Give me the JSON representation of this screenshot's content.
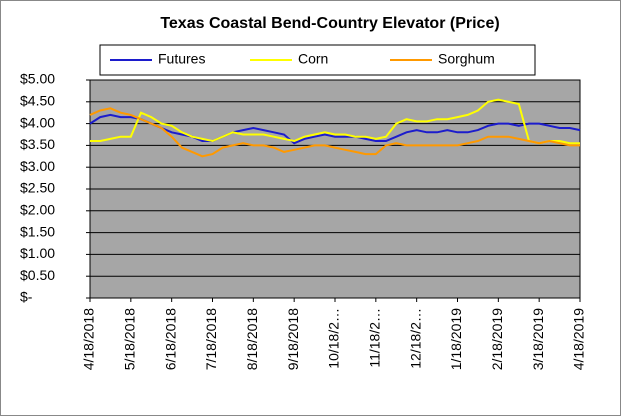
{
  "chart_data": {
    "type": "line",
    "title": "Texas Coastal Bend-Country Elevator (Price)",
    "categories": [
      "4/18/2018",
      null,
      null,
      null,
      "5/18/2018",
      null,
      null,
      null,
      "6/18/2018",
      null,
      null,
      null,
      "7/18/2018",
      null,
      null,
      null,
      "8/18/2018",
      null,
      null,
      null,
      "9/18/2018",
      null,
      null,
      null,
      "10/18/2…",
      null,
      null,
      null,
      "11/18/2…",
      null,
      null,
      null,
      "12/18/2…",
      null,
      null,
      null,
      "1/18/2019",
      null,
      null,
      null,
      "2/18/2019",
      null,
      null,
      null,
      "3/18/2019",
      null,
      null,
      null,
      "4/18/2019"
    ],
    "series": [
      {
        "name": "Futures",
        "color": "#1c1ccc",
        "values": [
          4.0,
          4.15,
          4.2,
          4.15,
          4.15,
          4.1,
          4.0,
          3.9,
          3.8,
          3.75,
          3.7,
          3.6,
          3.6,
          3.7,
          3.8,
          3.85,
          3.9,
          3.85,
          3.8,
          3.75,
          3.55,
          3.65,
          3.7,
          3.75,
          3.7,
          3.7,
          3.7,
          3.65,
          3.6,
          3.6,
          3.7,
          3.8,
          3.85,
          3.8,
          3.8,
          3.85,
          3.8,
          3.8,
          3.85,
          3.95,
          4.0,
          4.0,
          3.95,
          4.0,
          4.0,
          3.95,
          3.9,
          3.9,
          3.85
        ]
      },
      {
        "name": "Corn",
        "color": "#ffff00",
        "values": [
          3.6,
          3.6,
          3.65,
          3.7,
          3.7,
          4.25,
          4.15,
          4.0,
          3.95,
          3.8,
          3.7,
          3.65,
          3.6,
          3.7,
          3.8,
          3.75,
          3.75,
          3.75,
          3.7,
          3.65,
          3.6,
          3.7,
          3.75,
          3.8,
          3.75,
          3.75,
          3.7,
          3.7,
          3.65,
          3.7,
          4.0,
          4.1,
          4.05,
          4.05,
          4.1,
          4.1,
          4.15,
          4.2,
          4.3,
          4.5,
          4.55,
          4.5,
          4.45,
          3.6,
          3.55,
          3.6,
          3.6,
          3.55,
          3.55
        ]
      },
      {
        "name": "Sorghum",
        "color": "#ff9900",
        "values": [
          4.2,
          4.3,
          4.35,
          4.25,
          4.2,
          4.1,
          4.0,
          3.9,
          3.7,
          3.45,
          3.35,
          3.25,
          3.3,
          3.45,
          3.5,
          3.55,
          3.5,
          3.5,
          3.45,
          3.35,
          3.4,
          3.45,
          3.5,
          3.5,
          3.45,
          3.4,
          3.35,
          3.3,
          3.3,
          3.5,
          3.55,
          3.5,
          3.5,
          3.5,
          3.5,
          3.5,
          3.5,
          3.55,
          3.6,
          3.7,
          3.7,
          3.7,
          3.65,
          3.6,
          3.55,
          3.6,
          3.55,
          3.5,
          3.5
        ]
      }
    ],
    "ylim": [
      0,
      5
    ],
    "yticks": [
      {
        "value": 0,
        "label": "$-"
      },
      {
        "value": 0.5,
        "label": "$0.50"
      },
      {
        "value": 1,
        "label": "$1.00"
      },
      {
        "value": 1.5,
        "label": "$1.50"
      },
      {
        "value": 2,
        "label": "$2.00"
      },
      {
        "value": 2.5,
        "label": "$2.50"
      },
      {
        "value": 3,
        "label": "$3.00"
      },
      {
        "value": 3.5,
        "label": "$3.50"
      },
      {
        "value": 4,
        "label": "$4.00"
      },
      {
        "value": 4.5,
        "label": "$4.50"
      },
      {
        "value": 5,
        "label": "$5.00"
      }
    ],
    "grid": true,
    "legend": "top",
    "plot_background": "#a6a6a6"
  }
}
